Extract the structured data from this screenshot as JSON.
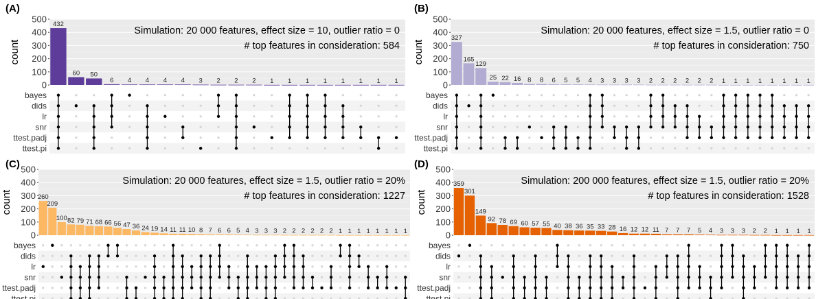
{
  "chart_data": [
    {
      "type": "upset",
      "panel": "(A)",
      "annotation_line1": "Simulation: 20 000 features, effect size = 10, outlier ratio = 0",
      "annotation_line2": "# top features in consideration: 584",
      "ylabel": "count",
      "ylim": [
        0,
        500
      ],
      "yticks": [
        0,
        100,
        200,
        300,
        400,
        500
      ],
      "color": "#5e3c99",
      "sets": [
        "bayes",
        "dids",
        "lr",
        "snr",
        "ttest.padj",
        "ttest.pi"
      ],
      "values": [
        432,
        60,
        50,
        6,
        4,
        4,
        4,
        4,
        3,
        2,
        2,
        2,
        1,
        1,
        1,
        1,
        1,
        1,
        1,
        1
      ],
      "value_labels": [
        "432",
        "60",
        "50",
        "6",
        "4",
        "4",
        "4",
        "4",
        "3",
        "2",
        "2",
        "2",
        "1",
        "1",
        "1",
        "1",
        "1",
        "1",
        "1",
        "1"
      ],
      "memberships": [
        [
          0,
          1,
          2,
          3,
          4,
          5
        ],
        [
          1
        ],
        [
          1,
          2,
          3,
          4,
          5
        ],
        [
          0,
          1,
          2,
          3
        ],
        [
          0
        ],
        [
          1,
          2,
          3,
          4,
          5
        ],
        [
          2
        ],
        [
          3,
          4
        ],
        [
          5
        ],
        [
          0,
          1,
          2
        ],
        [
          0,
          1,
          2,
          3,
          4,
          5
        ],
        [
          3
        ],
        [
          4
        ],
        [
          0,
          1,
          2,
          3,
          4
        ],
        [
          0,
          1,
          2,
          3,
          4
        ],
        [
          0,
          1,
          2,
          3,
          4
        ],
        [
          1,
          2,
          3,
          4
        ],
        [
          3,
          4
        ],
        [
          4,
          5
        ],
        [
          4
        ]
      ]
    },
    {
      "type": "upset",
      "panel": "(B)",
      "annotation_line1": "Simulation: 20 000 features, effect size = 1.5, outlier ratio = 0",
      "annotation_line2": "# top features in consideration: 750",
      "ylabel": "count",
      "ylim": [
        0,
        500
      ],
      "yticks": [
        0,
        100,
        200,
        300,
        400,
        500
      ],
      "color": "#b2abd2",
      "sets": [
        "bayes",
        "dids",
        "lr",
        "snr",
        "ttest.padj",
        "ttest.pi"
      ],
      "values": [
        327,
        165,
        129,
        25,
        22,
        16,
        8,
        8,
        6,
        5,
        5,
        4,
        3,
        3,
        3,
        3,
        2,
        2,
        2,
        2,
        2,
        2,
        1,
        1,
        1,
        1,
        1,
        1,
        1,
        1
      ],
      "value_labels": [
        "327",
        "165",
        "129",
        "25",
        "22",
        "16",
        "8",
        "8",
        "6",
        "5",
        "5",
        "4",
        "3",
        "3",
        "3",
        "3",
        "2",
        "2",
        "2",
        "2",
        "2",
        "2",
        "1",
        "1",
        "1",
        "1",
        "1",
        "1",
        "1",
        "1"
      ],
      "memberships": [
        [
          0,
          1,
          2,
          3,
          4,
          5
        ],
        [
          1
        ],
        [
          0,
          1,
          2,
          3,
          4,
          5
        ],
        [
          0
        ],
        [
          4,
          5
        ],
        [
          4,
          5
        ],
        [
          3
        ],
        [
          4
        ],
        [
          3,
          4,
          5
        ],
        [
          3,
          4,
          5
        ],
        [
          4,
          5
        ],
        [
          0,
          1,
          2,
          3,
          4,
          5
        ],
        [
          0,
          1,
          2,
          3
        ],
        [
          3,
          4
        ],
        [
          3,
          4,
          5
        ],
        [
          3,
          4,
          5
        ],
        [
          0,
          1,
          2,
          3
        ],
        [
          0,
          1,
          2,
          3
        ],
        [
          1,
          2,
          3
        ],
        [
          1,
          2,
          3,
          4
        ],
        [
          2,
          3,
          4
        ],
        [
          3,
          4
        ],
        [
          0,
          1,
          2,
          3,
          4
        ],
        [
          0,
          1,
          2,
          3,
          4
        ],
        [
          0,
          1,
          2,
          3,
          4
        ],
        [
          0,
          1,
          2,
          3,
          4
        ],
        [
          0,
          1,
          2,
          3,
          4
        ],
        [
          1,
          2,
          3,
          4
        ],
        [
          1,
          2,
          3,
          4
        ],
        [
          1,
          2,
          3,
          4
        ]
      ]
    },
    {
      "type": "upset",
      "panel": "(C)",
      "annotation_line1": "Simulation: 20 000 features, effect size = 1.5, outlier ratio = 20%",
      "annotation_line2": "# top features in consideration: 1227",
      "ylabel": "count",
      "ylim": [
        0,
        500
      ],
      "yticks": [
        0,
        100,
        200,
        300,
        400,
        500
      ],
      "color": "#fdb863",
      "sets": [
        "bayes",
        "dids",
        "lr",
        "snr",
        "ttest.padj",
        "ttest.pi"
      ],
      "values": [
        260,
        209,
        100,
        82,
        79,
        71,
        68,
        66,
        56,
        47,
        36,
        24,
        19,
        14,
        11,
        11,
        10,
        8,
        7,
        6,
        6,
        5,
        4,
        3,
        3,
        3,
        2,
        2,
        2,
        2,
        2,
        2,
        1,
        1,
        1,
        1,
        1,
        1,
        1,
        1
      ],
      "value_labels": [
        "260",
        "209",
        "100",
        "82",
        "79",
        "71",
        "68",
        "66",
        "56",
        "47",
        "36",
        "24",
        "19",
        "14",
        "11",
        "11",
        "10",
        "8",
        "7",
        "6",
        "6",
        "5",
        "4",
        "3",
        "3",
        "3",
        "2",
        "2",
        "2",
        "2",
        "2",
        "2",
        "1",
        "1",
        "1",
        "1",
        "1",
        "1",
        "1",
        "1"
      ],
      "memberships": [
        [
          2
        ],
        [
          0
        ],
        [
          3
        ],
        [
          1,
          2,
          3,
          4,
          5
        ],
        [
          2,
          3,
          4,
          5
        ],
        [
          1,
          2,
          3,
          4,
          5
        ],
        [
          1,
          2,
          3,
          4
        ],
        [
          0,
          1
        ],
        [
          0,
          1
        ],
        [
          3,
          4,
          5
        ],
        [
          4,
          5
        ],
        [
          3
        ],
        [
          1,
          2,
          3,
          4,
          5
        ],
        [
          3,
          4,
          5
        ],
        [
          0,
          1,
          2,
          3,
          4,
          5
        ],
        [
          1,
          2,
          3,
          4,
          5
        ],
        [
          2,
          3,
          4
        ],
        [
          1,
          2,
          3,
          4,
          5
        ],
        [
          1,
          2,
          3,
          4,
          5
        ],
        [
          0,
          1,
          2,
          3
        ],
        [
          2,
          3,
          4
        ],
        [
          3,
          4,
          5
        ],
        [
          1,
          2,
          3,
          4,
          5
        ],
        [
          2,
          3,
          4
        ],
        [
          2,
          3,
          4,
          5
        ],
        [
          1,
          2,
          3,
          4,
          5
        ],
        [
          0,
          1,
          2,
          3
        ],
        [
          0,
          1,
          2,
          3,
          4
        ],
        [
          1,
          2,
          3,
          4
        ],
        [
          3,
          4
        ],
        [
          4
        ],
        [
          2,
          3,
          4
        ],
        [
          0,
          1
        ],
        [
          0,
          1,
          2,
          3,
          4
        ],
        [
          1,
          2
        ],
        [
          2,
          3,
          4
        ],
        [
          3,
          4
        ],
        [
          2,
          3,
          4
        ],
        [
          4
        ],
        [
          3,
          4,
          5
        ]
      ]
    },
    {
      "type": "upset",
      "panel": "(D)",
      "annotation_line1": "Simulation: 200 000 features, effect size = 1.5, outlier ratio = 20%",
      "annotation_line2": "# top features in consideration: 1528",
      "ylabel": "count",
      "ylim": [
        0,
        500
      ],
      "yticks": [
        0,
        100,
        200,
        300,
        400,
        500
      ],
      "color": "#e66101",
      "sets": [
        "bayes",
        "dids",
        "lr",
        "snr",
        "ttest.padj",
        "ttest.pi"
      ],
      "values": [
        359,
        301,
        149,
        92,
        78,
        69,
        60,
        57,
        55,
        40,
        38,
        36,
        35,
        33,
        28,
        16,
        12,
        12,
        11,
        7,
        7,
        7,
        5,
        4,
        3,
        3,
        3,
        2,
        2,
        1,
        1,
        1,
        1
      ],
      "value_labels": [
        "359",
        "301",
        "149",
        "92",
        "78",
        "69",
        "60",
        "57",
        "55",
        "40",
        "38",
        "36",
        "35",
        "33",
        "28",
        "16",
        "12",
        "12",
        "11",
        "7",
        "7",
        "7",
        "5",
        "4",
        "3",
        "3",
        "3",
        "2",
        "2",
        "1",
        "1",
        "1",
        "1"
      ],
      "memberships": [
        [
          1
        ],
        [
          0
        ],
        [
          1,
          2,
          3,
          4,
          5
        ],
        [
          2,
          3,
          4,
          5
        ],
        [
          3
        ],
        [
          1,
          2,
          3,
          4,
          5
        ],
        [
          3,
          4,
          5
        ],
        [
          1,
          2,
          3,
          4,
          5
        ],
        [
          3,
          4,
          5
        ],
        [
          0,
          1,
          2
        ],
        [
          1,
          2,
          3,
          4,
          5
        ],
        [
          3,
          4,
          5
        ],
        [
          1,
          2,
          3,
          4,
          5
        ],
        [
          1,
          2,
          3,
          4,
          5
        ],
        [
          2,
          3,
          4,
          5
        ],
        [
          3,
          4
        ],
        [
          1,
          2,
          3,
          4,
          5
        ],
        [
          4
        ],
        [
          2,
          3,
          4,
          5
        ],
        [
          1,
          2,
          3
        ],
        [
          1,
          2,
          3,
          4,
          5
        ],
        [
          0,
          1,
          2,
          3,
          4
        ],
        [
          2,
          3,
          4
        ],
        [
          3,
          4,
          5
        ],
        [
          0,
          1,
          2,
          3,
          4
        ],
        [
          0,
          1,
          2,
          3
        ],
        [
          1,
          2,
          3,
          4,
          5
        ],
        [
          2,
          3,
          4
        ],
        [
          0,
          1,
          2,
          3
        ],
        [
          0,
          1,
          2,
          3,
          4
        ],
        [
          0,
          1,
          2,
          3,
          4
        ],
        [
          1,
          2,
          3,
          4
        ],
        [
          0,
          1,
          2,
          3,
          4
        ]
      ]
    }
  ]
}
